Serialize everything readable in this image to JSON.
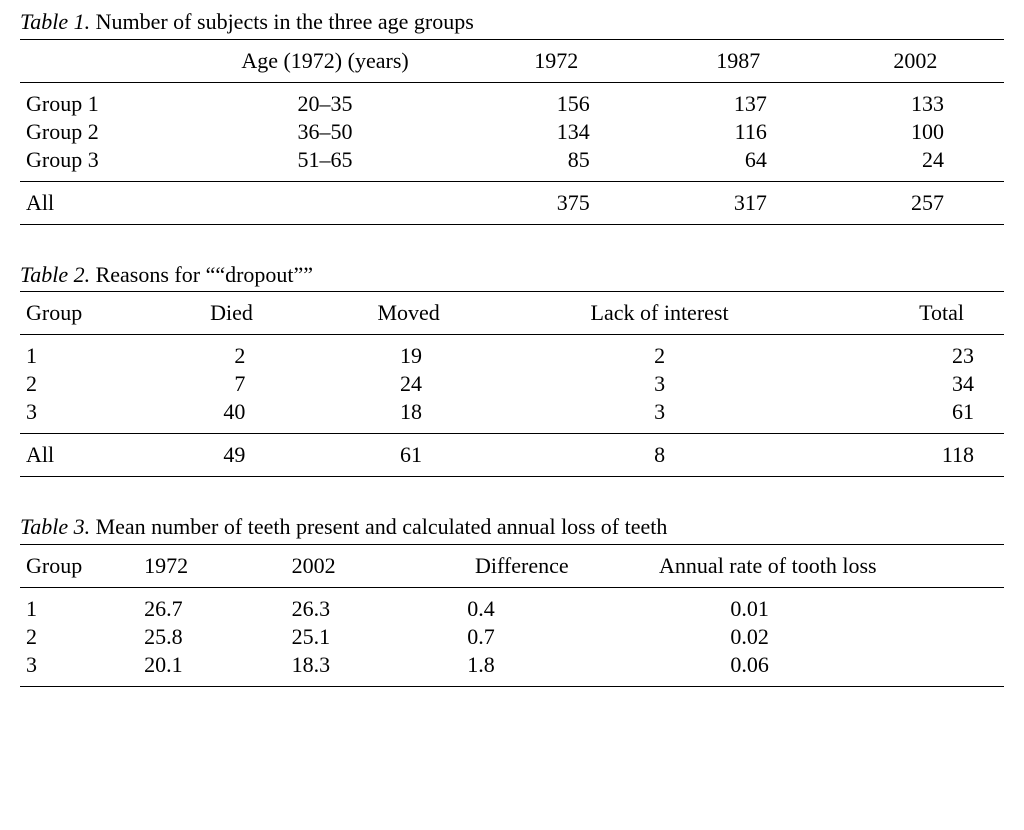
{
  "styling": {
    "font_family": "Times New Roman",
    "text_color": "#000000",
    "background_color": "#ffffff",
    "rule_color": "#000000",
    "base_fontsize_pt": 16,
    "caption_italic_label": true
  },
  "table1": {
    "type": "table",
    "label": "Table 1.",
    "title": "Number of subjects in the three age groups",
    "columns": [
      "",
      "Age (1972) (years)",
      "1972",
      "1987",
      "2002"
    ],
    "header_align": [
      "left",
      "center",
      "center",
      "center",
      "center"
    ],
    "body_align": [
      "left",
      "center",
      "right",
      "right",
      "right"
    ],
    "rows": [
      [
        "Group 1",
        "20–35",
        "156",
        "137",
        "133"
      ],
      [
        "Group 2",
        "36–50",
        "134",
        "116",
        "100"
      ],
      [
        "Group 3",
        "51–65",
        "85",
        "64",
        "24"
      ]
    ],
    "footer": [
      "All",
      "",
      "375",
      "317",
      "257"
    ]
  },
  "table2": {
    "type": "table",
    "label": "Table 2.",
    "title": "Reasons for ““dropout””",
    "columns": [
      "Group",
      "Died",
      "Moved",
      "Lack of interest",
      "Total"
    ],
    "header_align": [
      "left",
      "center",
      "center",
      "center",
      "right"
    ],
    "body_align": [
      "left",
      "right",
      "right",
      "center",
      "right"
    ],
    "rows": [
      [
        "1",
        "2",
        "19",
        "2",
        "23"
      ],
      [
        "2",
        "7",
        "24",
        "3",
        "34"
      ],
      [
        "3",
        "40",
        "18",
        "3",
        "61"
      ]
    ],
    "footer": [
      "All",
      "49",
      "61",
      "8",
      "118"
    ]
  },
  "table3": {
    "type": "table",
    "label": "Table 3.",
    "title": "Mean number of teeth present and calculated annual loss of teeth",
    "columns": [
      "Group",
      "1972",
      "2002",
      "Difference",
      "Annual rate of tooth loss",
      ""
    ],
    "header_align": [
      "left",
      "left",
      "left",
      "center",
      "center",
      "left"
    ],
    "body_align": [
      "left",
      "left",
      "left",
      "left",
      "left",
      "left"
    ],
    "rows": [
      [
        "1",
        "26.7",
        "26.3",
        "0.4",
        "0.01",
        ""
      ],
      [
        "2",
        "25.8",
        "25.1",
        "0.7",
        "0.02",
        ""
      ],
      [
        "3",
        "20.1",
        "18.3",
        "1.8",
        "0.06",
        ""
      ]
    ]
  }
}
